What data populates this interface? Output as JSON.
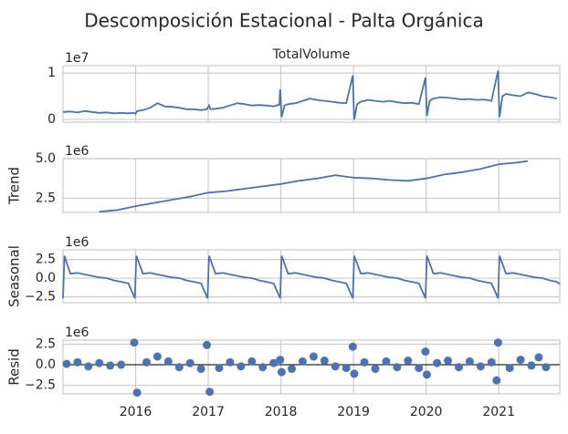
{
  "title": "Descomposición Estacional - Palta Orgánica",
  "chart_data": [
    {
      "type": "line",
      "title": "TotalVolume",
      "offset_label": "1e7",
      "color": "#4c72b0",
      "grid": true,
      "xlim": [
        2015.0,
        2021.84
      ],
      "xticks": [
        2016,
        2017,
        2018,
        2019,
        2020,
        2021
      ],
      "ylim": [
        -0.06,
        1.16
      ],
      "yticks": [
        0,
        1
      ],
      "x": [
        2015.0,
        2015.1,
        2015.2,
        2015.3,
        2015.4,
        2015.5,
        2015.6,
        2015.7,
        2015.8,
        2015.9,
        2015.98,
        2016.0,
        2016.02,
        2016.1,
        2016.2,
        2016.3,
        2016.4,
        2016.5,
        2016.6,
        2016.7,
        2016.8,
        2016.9,
        2016.98,
        2017.01,
        2017.03,
        2017.1,
        2017.2,
        2017.3,
        2017.4,
        2017.5,
        2017.6,
        2017.7,
        2017.8,
        2017.9,
        2017.98,
        2017.99,
        2018.01,
        2018.05,
        2018.1,
        2018.2,
        2018.3,
        2018.4,
        2018.5,
        2018.6,
        2018.7,
        2018.8,
        2018.9,
        2018.99,
        2019.01,
        2019.05,
        2019.1,
        2019.2,
        2019.3,
        2019.4,
        2019.5,
        2019.6,
        2019.7,
        2019.8,
        2019.9,
        2019.99,
        2020.01,
        2020.05,
        2020.1,
        2020.2,
        2020.3,
        2020.4,
        2020.5,
        2020.6,
        2020.7,
        2020.8,
        2020.9,
        2020.99,
        2021.01,
        2021.05,
        2021.1,
        2021.2,
        2021.3,
        2021.4,
        2021.5,
        2021.6,
        2021.7,
        2021.8
      ],
      "values": [
        0.16,
        0.17,
        0.15,
        0.18,
        0.16,
        0.14,
        0.15,
        0.13,
        0.14,
        0.13,
        0.14,
        0.12,
        0.18,
        0.2,
        0.25,
        0.35,
        0.28,
        0.27,
        0.25,
        0.22,
        0.22,
        0.2,
        0.22,
        0.3,
        0.22,
        0.23,
        0.25,
        0.3,
        0.35,
        0.33,
        0.3,
        0.31,
        0.3,
        0.28,
        0.32,
        0.65,
        0.05,
        0.3,
        0.33,
        0.35,
        0.4,
        0.45,
        0.42,
        0.4,
        0.38,
        0.36,
        0.35,
        0.95,
        0.0,
        0.33,
        0.38,
        0.42,
        0.4,
        0.38,
        0.4,
        0.37,
        0.35,
        0.36,
        0.33,
        0.9,
        0.08,
        0.4,
        0.45,
        0.48,
        0.47,
        0.45,
        0.43,
        0.44,
        0.42,
        0.43,
        0.4,
        1.05,
        0.05,
        0.5,
        0.55,
        0.52,
        0.5,
        0.58,
        0.55,
        0.5,
        0.48,
        0.45
      ]
    },
    {
      "type": "line",
      "ylabel": "Trend",
      "offset_label": "1e6",
      "color": "#4c72b0",
      "grid": true,
      "xlim": [
        2015.0,
        2021.84
      ],
      "xticks": [
        2016,
        2017,
        2018,
        2019,
        2020,
        2021
      ],
      "ylim": [
        1.6,
        5.0
      ],
      "yticks": [
        2.5,
        {
          "value": 5,
          "label": "5.0"
        }
      ],
      "x": [
        2015.5,
        2015.75,
        2016,
        2016.25,
        2016.5,
        2016.75,
        2017,
        2017.25,
        2017.5,
        2017.75,
        2018,
        2018.25,
        2018.5,
        2018.75,
        2019,
        2019.25,
        2019.5,
        2019.75,
        2020,
        2020.25,
        2020.5,
        2020.75,
        2021,
        2021.25,
        2021.4
      ],
      "values": [
        1.65,
        1.75,
        2.0,
        2.2,
        2.4,
        2.6,
        2.85,
        2.95,
        3.1,
        3.25,
        3.4,
        3.6,
        3.75,
        3.95,
        3.8,
        3.75,
        3.65,
        3.6,
        3.75,
        4.0,
        4.15,
        4.35,
        4.65,
        4.75,
        4.85
      ]
    },
    {
      "type": "line",
      "ylabel": "Seasonal",
      "offset_label": "1e6",
      "color": "#4c72b0",
      "grid": true,
      "xlim": [
        2015.0,
        2021.84
      ],
      "xticks": [
        2016,
        2017,
        2018,
        2019,
        2020,
        2021
      ],
      "ylim": [
        -3.3,
        3.8
      ],
      "yticks": [
        {
          "value": -2.5,
          "label": "−2.5"
        },
        {
          "value": 0,
          "label": "0.0"
        },
        2.5
      ],
      "x": [
        2015.0,
        2015.02,
        2015.1,
        2015.2,
        2015.3,
        2015.4,
        2015.5,
        2015.6,
        2015.7,
        2015.8,
        2015.9,
        2015.99,
        2016.01,
        2016.1,
        2016.2,
        2016.3,
        2016.4,
        2016.5,
        2016.6,
        2016.7,
        2016.8,
        2016.9,
        2016.99,
        2017.01,
        2017.1,
        2017.2,
        2017.3,
        2017.4,
        2017.5,
        2017.6,
        2017.7,
        2017.8,
        2017.9,
        2017.99,
        2018.01,
        2018.1,
        2018.2,
        2018.3,
        2018.4,
        2018.5,
        2018.6,
        2018.7,
        2018.8,
        2018.9,
        2018.99,
        2019.01,
        2019.1,
        2019.2,
        2019.3,
        2019.4,
        2019.5,
        2019.6,
        2019.7,
        2019.8,
        2019.9,
        2019.99,
        2020.01,
        2020.1,
        2020.2,
        2020.3,
        2020.4,
        2020.5,
        2020.6,
        2020.7,
        2020.8,
        2020.9,
        2020.99,
        2021.01,
        2021.1,
        2021.2,
        2021.3,
        2021.4,
        2021.5,
        2021.6,
        2021.7,
        2021.8,
        2021.84
      ],
      "values": [
        -2.7,
        3.0,
        0.6,
        0.7,
        0.5,
        0.3,
        0.1,
        0.0,
        -0.3,
        -0.5,
        -0.7,
        -2.7,
        3.0,
        0.6,
        0.7,
        0.5,
        0.3,
        0.1,
        0.0,
        -0.3,
        -0.5,
        -0.7,
        -2.7,
        3.0,
        0.6,
        0.7,
        0.5,
        0.3,
        0.1,
        0.0,
        -0.3,
        -0.5,
        -0.7,
        -2.7,
        3.0,
        0.6,
        0.7,
        0.5,
        0.3,
        0.1,
        0.0,
        -0.3,
        -0.5,
        -0.7,
        -2.7,
        3.0,
        0.6,
        0.7,
        0.5,
        0.3,
        0.1,
        0.0,
        -0.3,
        -0.5,
        -0.7,
        -2.7,
        3.0,
        0.6,
        0.7,
        0.5,
        0.3,
        0.1,
        0.0,
        -0.3,
        -0.5,
        -0.7,
        -2.7,
        3.0,
        0.6,
        0.7,
        0.5,
        0.3,
        0.1,
        0.0,
        -0.3,
        -0.5,
        -0.8
      ]
    },
    {
      "type": "scatter",
      "ylabel": "Resid",
      "offset_label": "1e6",
      "color": "#4c72b0",
      "grid": true,
      "xlim": [
        2015.0,
        2021.84
      ],
      "xticks": [
        2016,
        2017,
        2018,
        2019,
        2020,
        2021
      ],
      "ylim": [
        -3.55,
        3.0
      ],
      "yticks": [
        {
          "value": -2.5,
          "label": "−2.5"
        },
        {
          "value": 0,
          "label": "0.0"
        },
        2.5
      ],
      "x": [
        2015.05,
        2015.2,
        2015.35,
        2015.5,
        2015.65,
        2015.8,
        2015.98,
        2016.02,
        2016.15,
        2016.3,
        2016.45,
        2016.6,
        2016.75,
        2016.9,
        2016.98,
        2017.02,
        2017.15,
        2017.3,
        2017.45,
        2017.6,
        2017.75,
        2017.9,
        2017.99,
        2018.01,
        2018.15,
        2018.3,
        2018.45,
        2018.6,
        2018.75,
        2018.9,
        2018.99,
        2019.01,
        2019.15,
        2019.3,
        2019.45,
        2019.6,
        2019.75,
        2019.9,
        2019.99,
        2020.01,
        2020.15,
        2020.3,
        2020.45,
        2020.6,
        2020.75,
        2020.9,
        2020.97,
        2020.99,
        2021.15,
        2021.3,
        2021.45,
        2021.55,
        2021.65
      ],
      "values": [
        0.1,
        0.3,
        -0.2,
        0.2,
        -0.1,
        0.0,
        2.7,
        -3.4,
        0.3,
        1.0,
        0.4,
        -0.3,
        0.2,
        -0.5,
        2.4,
        -3.3,
        -0.4,
        0.3,
        -0.2,
        0.4,
        -0.3,
        0.2,
        0.6,
        -0.9,
        -0.5,
        0.4,
        1.0,
        0.5,
        -0.2,
        -0.4,
        2.2,
        -1.1,
        0.3,
        -0.5,
        0.4,
        -0.3,
        0.5,
        -0.4,
        1.6,
        -1.2,
        0.2,
        0.5,
        -0.3,
        0.4,
        -0.2,
        0.3,
        -1.9,
        2.7,
        -0.4,
        0.6,
        -0.1,
        0.9,
        -0.3
      ]
    }
  ]
}
